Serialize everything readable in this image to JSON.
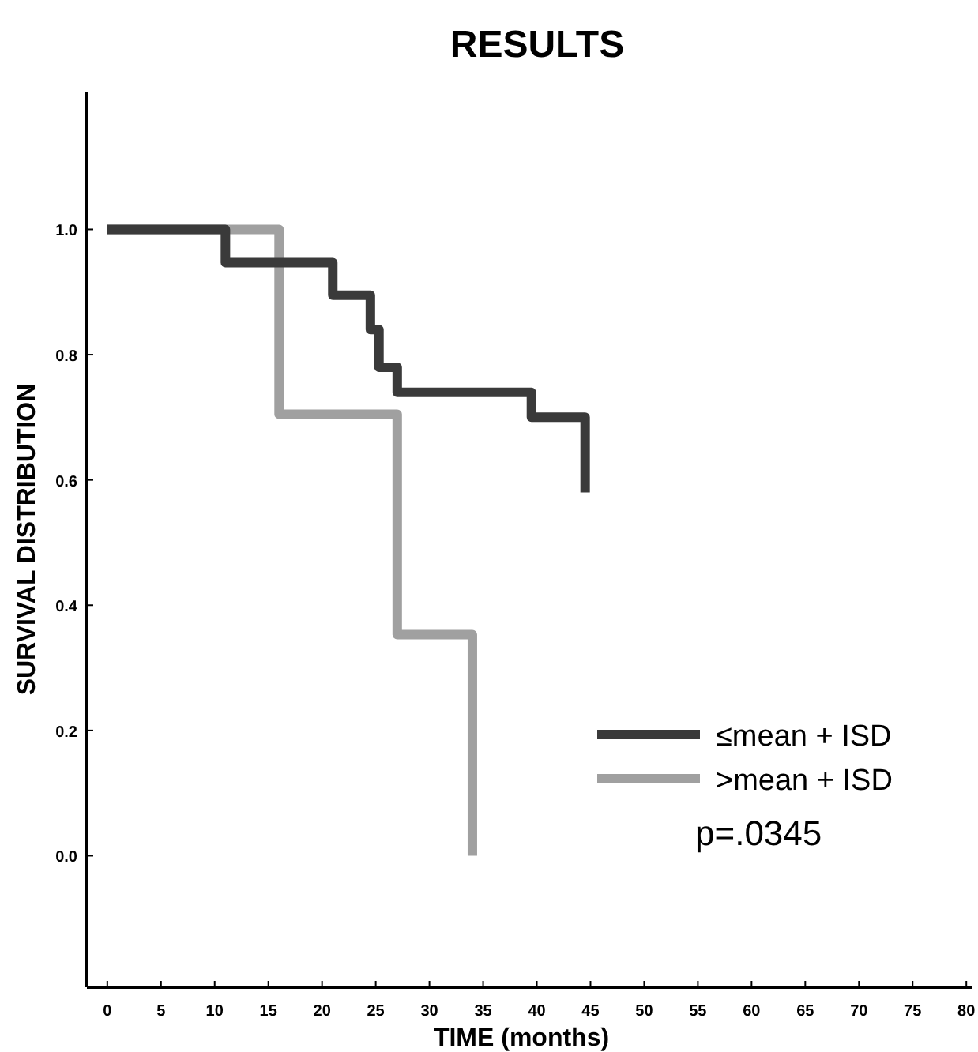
{
  "chart_data": {
    "type": "step",
    "title": "RESULTS",
    "xlabel": "TIME (months)",
    "ylabel": "SURVIVAL DISTRIBUTION",
    "xlim": [
      -1.9,
      80.5
    ],
    "xticks": [
      0,
      5,
      10,
      15,
      20,
      25,
      30,
      35,
      40,
      45,
      50,
      55,
      60,
      65,
      70,
      75,
      80
    ],
    "ylim": [
      -0.21,
      1.22
    ],
    "yticks": [
      {
        "value": 0,
        "label": "0.0"
      },
      {
        "value": 0.2,
        "label": "0.2"
      },
      {
        "value": 0.4,
        "label": "0.4"
      },
      {
        "value": 0.6,
        "label": "0.6"
      },
      {
        "value": 0.8,
        "label": "0.8"
      },
      {
        "value": 1,
        "label": "1.0"
      }
    ],
    "series": [
      {
        "name": "≤mean + ISD",
        "color": "#3a3a3a",
        "x": [
          0,
          11,
          21,
          24.5,
          25.3,
          27,
          39.5,
          44.5
        ],
        "values": [
          1,
          0.947,
          0.895,
          0.84,
          0.78,
          0.74,
          0.7,
          0.58
        ]
      },
      {
        "name": ">mean + ISD",
        "color": "#a0a0a0",
        "x": [
          0,
          16,
          27,
          34
        ],
        "values": [
          1,
          0.705,
          0.353,
          0
        ]
      }
    ],
    "legend": "bottom right",
    "grid": false,
    "annotations": [
      "p=.0345"
    ]
  }
}
